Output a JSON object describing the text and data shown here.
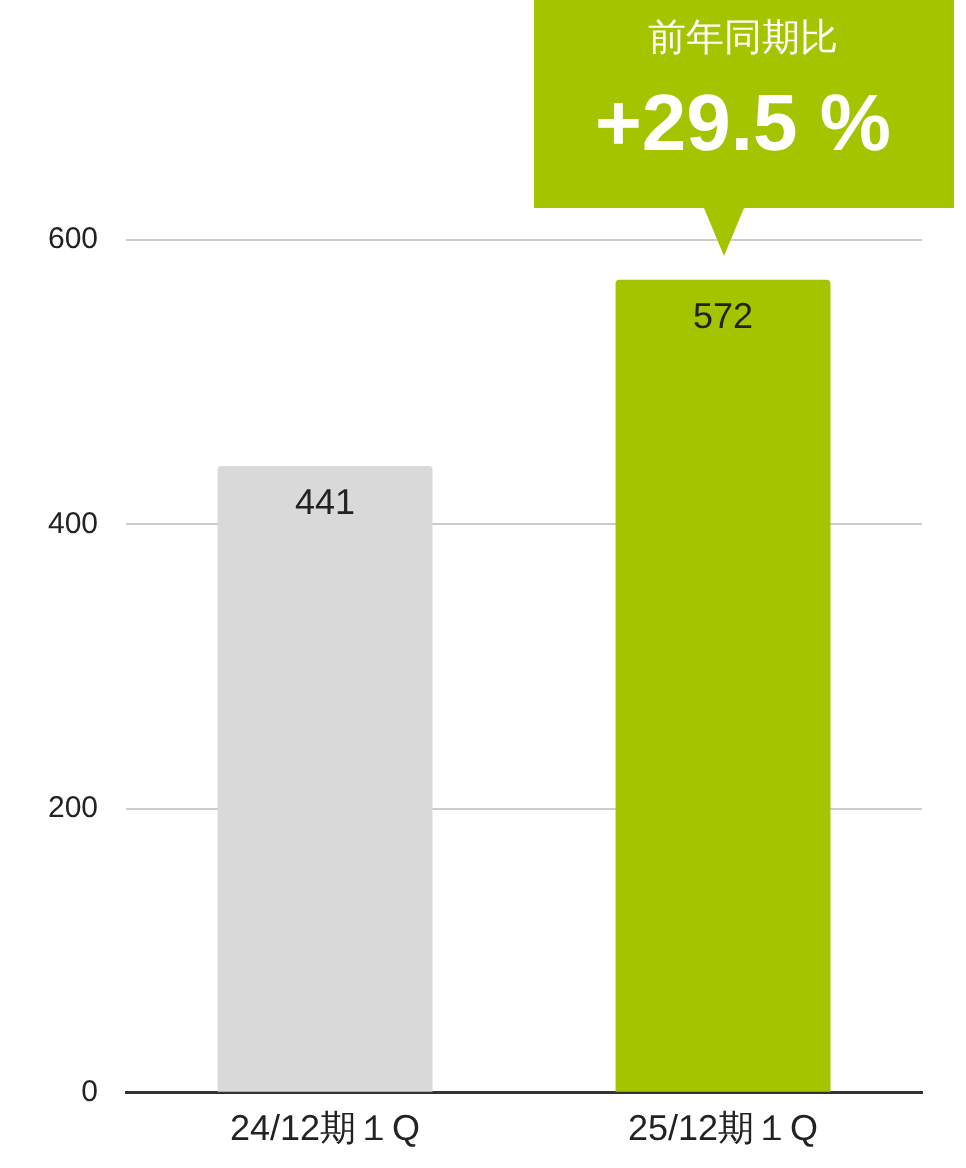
{
  "chart_data": {
    "type": "bar",
    "categories": [
      "24/12期１Q",
      "25/12期１Q"
    ],
    "values": [
      441,
      572
    ],
    "colors": [
      "#d9d9d9",
      "#a5c400"
    ],
    "ylim": [
      0,
      600
    ],
    "yticks": [
      0,
      200,
      400,
      600
    ],
    "grid": "y",
    "legend": false,
    "data_labels": true,
    "annotations": [
      {
        "text": "前年同期比\n+29.5 %",
        "x": "25/12期１Q",
        "y": 572
      }
    ]
  }
}
